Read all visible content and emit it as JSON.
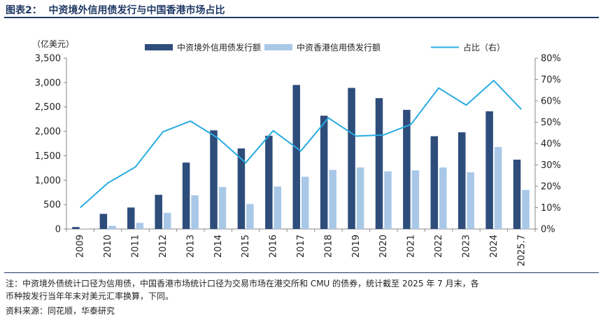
{
  "figure_title": "图表2：  中资境外信用债发行与中国香港市场占比",
  "notes": {
    "line1": "注：中资境外债统计口径为信用债，中国香港市场统计口径为交易市场在港交所和 CMU 的债券，统计截至 2025 年 7 月末，各",
    "line2": "币种按发行当年年末对美元汇率换算，下同。",
    "source": "资料来源：同花顺，华泰研究"
  },
  "chart_data": {
    "type": "bar",
    "categories": [
      "2009",
      "2010",
      "2011",
      "2012",
      "2013",
      "2014",
      "2015",
      "2016",
      "2017",
      "2018",
      "2019",
      "2020",
      "2021",
      "2022",
      "2023",
      "2024",
      "2025.7"
    ],
    "left_unit": "（亿美元）",
    "ylim_left": [
      0,
      3500
    ],
    "yticks_left": [
      0,
      500,
      1000,
      1500,
      2000,
      2500,
      3000,
      3500
    ],
    "yticks_left_labels": [
      "0",
      "500",
      "1,000",
      "1,500",
      "2,000",
      "2,500",
      "3,000",
      "3,500"
    ],
    "ylim_right": [
      0,
      80
    ],
    "yticks_right": [
      0,
      10,
      20,
      30,
      40,
      50,
      60,
      70,
      80
    ],
    "yticks_right_labels": [
      "0%",
      "10%",
      "20%",
      "30%",
      "40%",
      "50%",
      "60%",
      "70%",
      "80%"
    ],
    "series": [
      {
        "name": "中资境外信用债发行额",
        "kind": "bar",
        "axis": "left",
        "color": "#2e4d7b",
        "values": [
          40,
          310,
          440,
          700,
          1360,
          2020,
          1650,
          1910,
          2950,
          2320,
          2890,
          2680,
          2440,
          1900,
          1980,
          2410,
          1420
        ]
      },
      {
        "name": "中资香港信用债发行额",
        "kind": "bar",
        "axis": "left",
        "color": "#a9c8e8",
        "values": [
          5,
          65,
          125,
          330,
          690,
          860,
          510,
          870,
          1070,
          1210,
          1260,
          1180,
          1200,
          1260,
          1160,
          1680,
          800
        ]
      },
      {
        "name": "占比（右）",
        "kind": "line",
        "axis": "right",
        "color": "#29abe2",
        "values": [
          10,
          21.5,
          29,
          45.5,
          50.5,
          42.5,
          31,
          46,
          36.5,
          52,
          43.5,
          44,
          49,
          66,
          58,
          69.5,
          56
        ]
      }
    ],
    "legend_position": "top",
    "grid": false
  }
}
